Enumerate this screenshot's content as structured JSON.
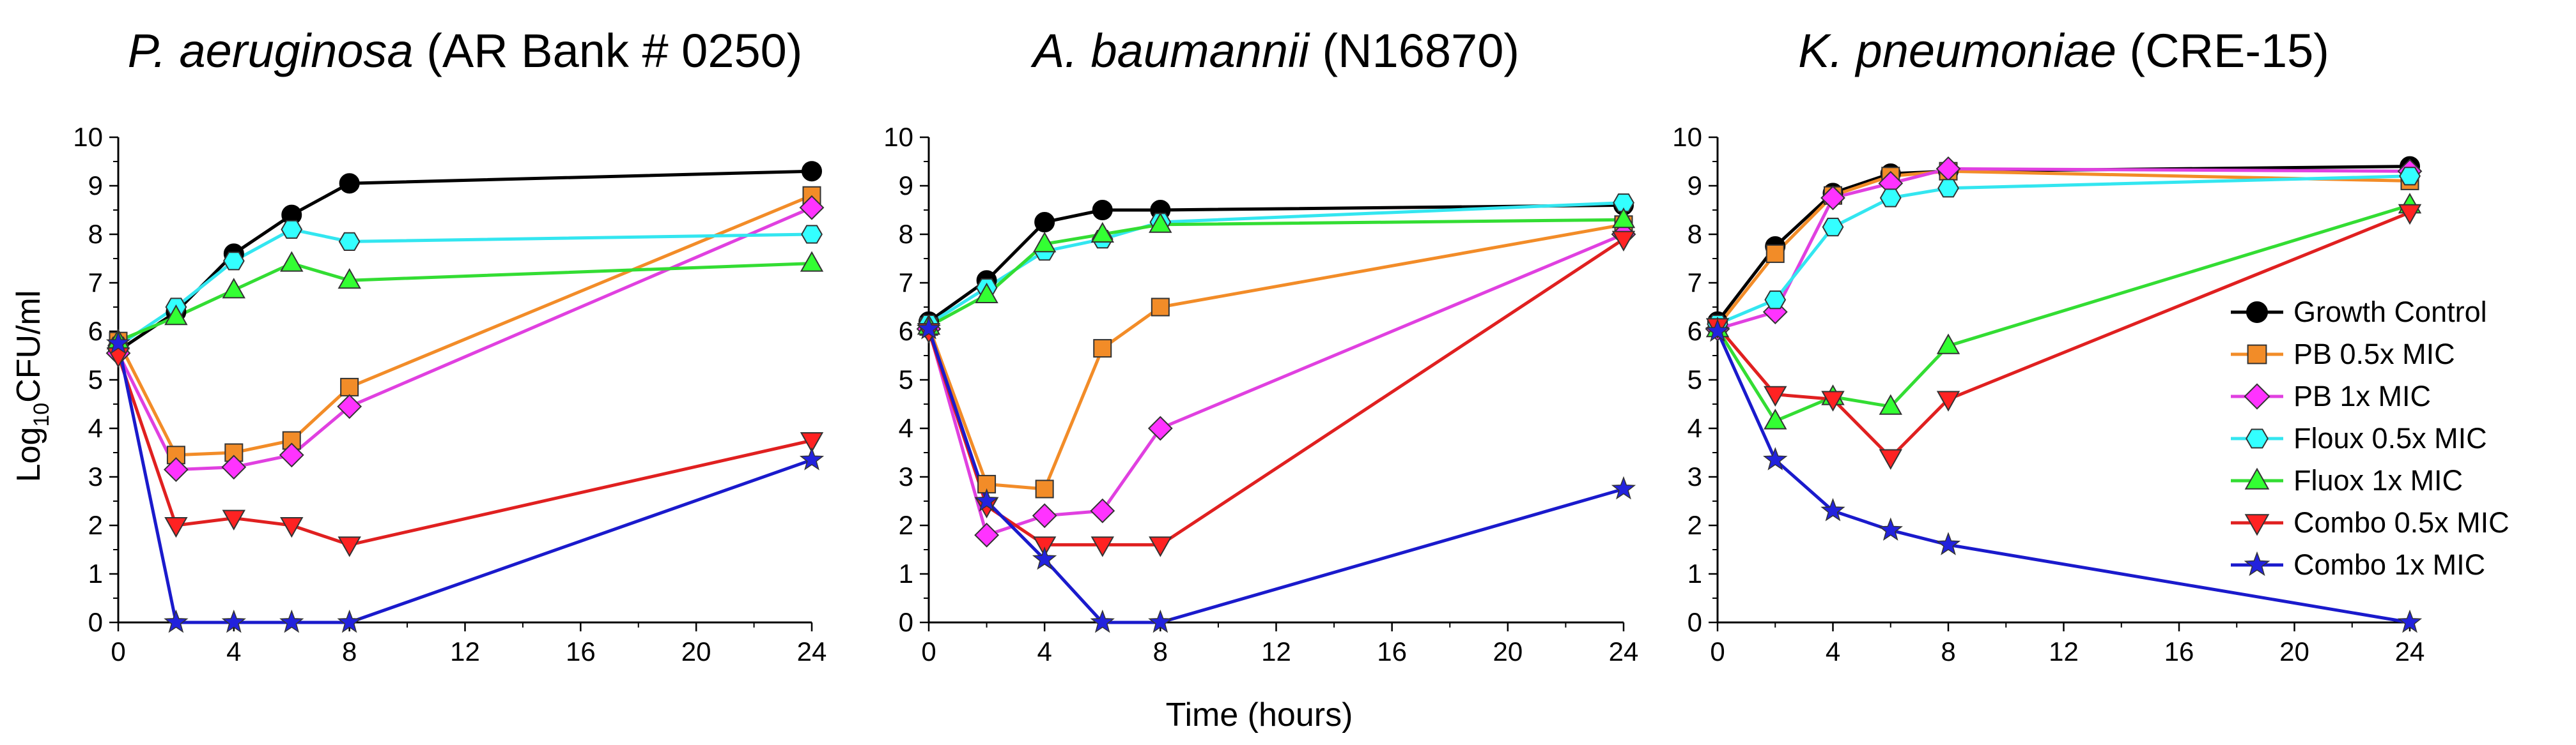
{
  "figure": {
    "ylabel_prefix": "Log",
    "ylabel_sub": "10",
    "ylabel_suffix": "CFU/ml",
    "xlabel": "Time (hours)",
    "x_ticks": [
      "0",
      "4",
      "8",
      "12",
      "16",
      "20",
      "24"
    ],
    "y_ticks": [
      "0",
      "1",
      "2",
      "3",
      "4",
      "5",
      "6",
      "7",
      "8",
      "9",
      "10"
    ]
  },
  "legend": [
    {
      "key": "growth",
      "label": "Growth Control"
    },
    {
      "key": "pb05",
      "label": "PB 0.5x MIC"
    },
    {
      "key": "pb1",
      "label": "PB 1x MIC"
    },
    {
      "key": "flx05",
      "label": "Floux 0.5x MIC"
    },
    {
      "key": "flx1",
      "label": "Fluox 1x MIC"
    },
    {
      "key": "combo05",
      "label": "Combo 0.5x MIC"
    },
    {
      "key": "combo1",
      "label": "Combo 1x MIC"
    }
  ],
  "series_style": {
    "growth": {
      "line": "#000000",
      "fill": "#000000",
      "marker": "circle"
    },
    "pb05": {
      "line": "#f28c28",
      "fill": "#f28c28",
      "marker": "square"
    },
    "pb1": {
      "line": "#e040e0",
      "fill": "#ff33ff",
      "marker": "diamond"
    },
    "flx05": {
      "line": "#33e6f0",
      "fill": "#33ffff",
      "marker": "hexagon"
    },
    "flx1": {
      "line": "#33dd33",
      "fill": "#33ff33",
      "marker": "triangle-up"
    },
    "combo05": {
      "line": "#e02020",
      "fill": "#ff2222",
      "marker": "triangle-down"
    },
    "combo1": {
      "line": "#1a1acc",
      "fill": "#2222dd",
      "marker": "star"
    }
  },
  "chart_data": [
    {
      "type": "line",
      "title_italic": "P. aeruginosa",
      "title_rest": " (AR Bank # 0250)",
      "x": [
        0,
        2,
        4,
        6,
        8,
        24
      ],
      "xlim": [
        0,
        24
      ],
      "ylim": [
        0,
        10
      ],
      "series": [
        {
          "key": "growth",
          "name": "Growth Control",
          "values": [
            5.6,
            6.4,
            7.6,
            8.4,
            9.05,
            9.3
          ]
        },
        {
          "key": "pb05",
          "name": "PB 0.5x MIC",
          "values": [
            5.8,
            3.45,
            3.5,
            3.75,
            4.85,
            8.8
          ]
        },
        {
          "key": "pb1",
          "name": "PB 1x MIC",
          "values": [
            5.55,
            3.15,
            3.2,
            3.45,
            4.45,
            8.55
          ]
        },
        {
          "key": "flx05",
          "name": "Floux 0.5x MIC",
          "values": [
            5.7,
            6.5,
            7.45,
            8.1,
            7.85,
            8.0
          ]
        },
        {
          "key": "flx1",
          "name": "Fluox 1x MIC",
          "values": [
            5.8,
            6.3,
            6.85,
            7.4,
            7.05,
            7.4
          ]
        },
        {
          "key": "combo05",
          "name": "Combo 0.5x MIC",
          "values": [
            5.5,
            2.0,
            2.15,
            2.0,
            1.6,
            3.75
          ]
        },
        {
          "key": "combo1",
          "name": "Combo 1x MIC",
          "values": [
            5.75,
            0,
            0,
            0,
            0,
            3.35
          ]
        }
      ]
    },
    {
      "type": "line",
      "title_italic": "A. baumannii",
      "title_rest": " (N16870)",
      "x": [
        0,
        2,
        4,
        6,
        8,
        24
      ],
      "xlim": [
        0,
        24
      ],
      "ylim": [
        0,
        10
      ],
      "series": [
        {
          "key": "growth",
          "name": "Growth Control",
          "values": [
            6.2,
            7.05,
            8.25,
            8.5,
            8.5,
            8.6
          ]
        },
        {
          "key": "pb05",
          "name": "PB 0.5x MIC",
          "values": [
            6.1,
            2.85,
            2.75,
            5.65,
            6.5,
            8.2
          ]
        },
        {
          "key": "pb1",
          "name": "PB 1x MIC",
          "values": [
            6.05,
            1.8,
            2.2,
            2.3,
            4.0,
            8.0
          ]
        },
        {
          "key": "flx05",
          "name": "Floux 0.5x MIC",
          "values": [
            6.15,
            6.9,
            7.65,
            7.9,
            8.25,
            8.65
          ]
        },
        {
          "key": "flx1",
          "name": "Fluox 1x MIC",
          "values": [
            6.1,
            6.75,
            7.8,
            8.0,
            8.2,
            8.3
          ]
        },
        {
          "key": "combo05",
          "name": "Combo 0.5x MIC",
          "values": [
            6.0,
            2.4,
            1.6,
            1.6,
            1.6,
            7.9
          ]
        },
        {
          "key": "combo1",
          "name": "Combo 1x MIC",
          "values": [
            6.05,
            2.5,
            1.3,
            0,
            0,
            2.75
          ]
        }
      ]
    },
    {
      "type": "line",
      "title_italic": "K. pneumoniae",
      "title_rest": " (CRE-15)",
      "x": [
        0,
        2,
        4,
        6,
        8,
        24
      ],
      "xlim": [
        0,
        24
      ],
      "ylim": [
        0,
        10
      ],
      "series": [
        {
          "key": "growth",
          "name": "Growth Control",
          "values": [
            6.2,
            7.75,
            8.85,
            9.25,
            9.3,
            9.4
          ]
        },
        {
          "key": "pb05",
          "name": "PB 0.5x MIC",
          "values": [
            6.1,
            7.6,
            8.8,
            9.2,
            9.3,
            9.1
          ]
        },
        {
          "key": "pb1",
          "name": "PB 1x MIC",
          "values": [
            6.05,
            6.4,
            8.75,
            9.05,
            9.35,
            9.3
          ]
        },
        {
          "key": "flx05",
          "name": "Floux 0.5x MIC",
          "values": [
            6.15,
            6.65,
            8.15,
            8.75,
            8.95,
            9.2
          ]
        },
        {
          "key": "flx1",
          "name": "Fluox 1x MIC",
          "values": [
            6.05,
            4.15,
            4.65,
            4.45,
            5.7,
            8.6
          ]
        },
        {
          "key": "combo05",
          "name": "Combo 0.5x MIC",
          "values": [
            6.1,
            4.7,
            4.6,
            3.4,
            4.6,
            8.45
          ]
        },
        {
          "key": "combo1",
          "name": "Combo 1x MIC",
          "values": [
            6.0,
            3.35,
            2.3,
            1.9,
            1.6,
            0
          ]
        }
      ]
    }
  ]
}
